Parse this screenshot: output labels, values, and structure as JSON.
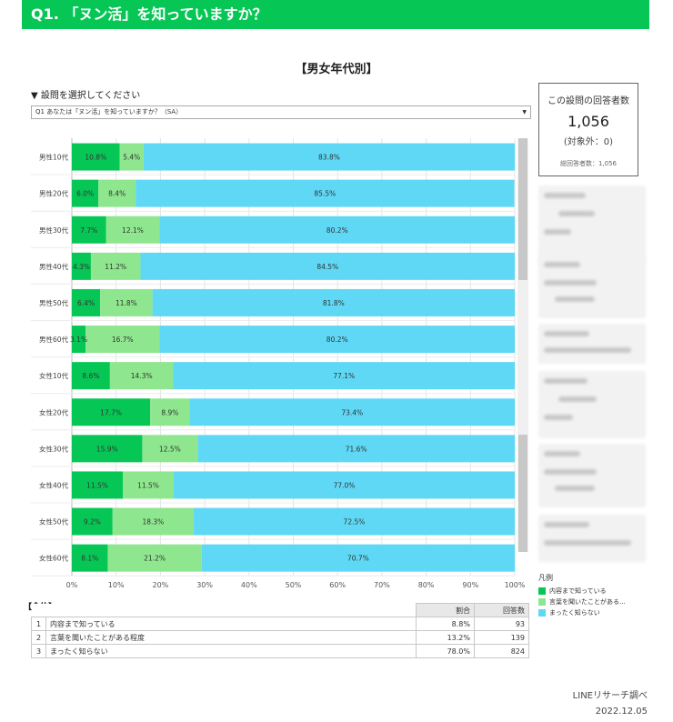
{
  "header": {
    "title": "Q1. 「ヌン活」を知っていますか？"
  },
  "subtitle": "【男女年代別】",
  "selector": {
    "label": "▼ 設問を選択してください",
    "value": "Q1 あなたは「ヌン活」を知っていますか？（SA）",
    "arrow": "▼"
  },
  "count_box": {
    "title": "この設問の回答者数",
    "count": "1,056",
    "excluded": "(対象外：0)",
    "total_label": "総回答者数：1,056"
  },
  "chart_data": {
    "type": "bar",
    "orientation": "horizontal",
    "stacked": true,
    "categories": [
      "男性10代",
      "男性20代",
      "男性30代",
      "男性40代",
      "男性50代",
      "男性60代",
      "女性10代",
      "女性20代",
      "女性30代",
      "女性40代",
      "女性50代",
      "女性60代"
    ],
    "series": [
      {
        "name": "内容まで知っている",
        "color": "#06c755",
        "values": [
          10.8,
          6.0,
          7.7,
          4.3,
          6.4,
          3.1,
          8.6,
          17.7,
          15.9,
          11.5,
          9.2,
          8.1
        ]
      },
      {
        "name": "言葉を聞いたことがある程度",
        "color": "#8ee68e",
        "values": [
          5.4,
          8.4,
          12.1,
          11.2,
          11.8,
          16.7,
          14.3,
          8.9,
          12.5,
          11.5,
          18.3,
          21.2
        ]
      },
      {
        "name": "まったく知らない",
        "color": "#5ed8f5",
        "values": [
          83.8,
          85.5,
          80.2,
          84.5,
          81.8,
          80.2,
          77.1,
          73.4,
          71.6,
          77.0,
          72.5,
          70.7
        ]
      }
    ],
    "xlim": [
      0,
      100
    ],
    "xticks": [
      "0%",
      "10%",
      "20%",
      "30%",
      "40%",
      "50%",
      "60%",
      "70%",
      "80%",
      "90%",
      "100%"
    ],
    "xlabel": "",
    "ylabel": ""
  },
  "legend": {
    "title": "凡例",
    "items": [
      {
        "label": "内容まで知っている",
        "color": "#06c755"
      },
      {
        "label": "言葉を聞いたことがある...",
        "color": "#8ee68e"
      },
      {
        "label": "まったく知らない",
        "color": "#5ed8f5"
      }
    ]
  },
  "summary": {
    "title": "【全体】",
    "col_ratio": "割合",
    "col_count": "回答数",
    "rows": [
      {
        "no": "1",
        "label": "内容まで知っている",
        "ratio": "8.8%",
        "count": "93"
      },
      {
        "no": "2",
        "label": "言葉を聞いたことがある程度",
        "ratio": "13.2%",
        "count": "139"
      },
      {
        "no": "3",
        "label": "まったく知らない",
        "ratio": "78.0%",
        "count": "824"
      }
    ]
  },
  "footer": {
    "source": "LINEリサーチ調べ",
    "date": "2022.12.05"
  }
}
